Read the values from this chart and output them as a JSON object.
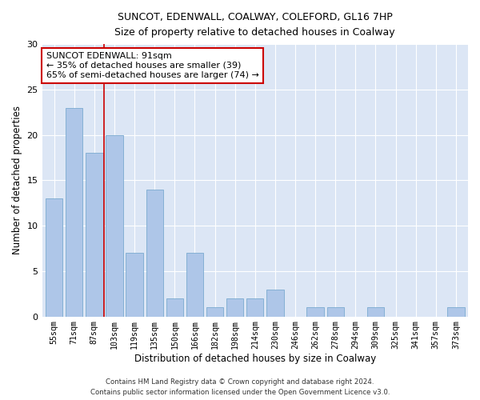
{
  "title1": "SUNCOT, EDENWALL, COALWAY, COLEFORD, GL16 7HP",
  "title2": "Size of property relative to detached houses in Coalway",
  "xlabel": "Distribution of detached houses by size in Coalway",
  "ylabel": "Number of detached properties",
  "categories": [
    "55sqm",
    "71sqm",
    "87sqm",
    "103sqm",
    "119sqm",
    "135sqm",
    "150sqm",
    "166sqm",
    "182sqm",
    "198sqm",
    "214sqm",
    "230sqm",
    "246sqm",
    "262sqm",
    "278sqm",
    "294sqm",
    "309sqm",
    "325sqm",
    "341sqm",
    "357sqm",
    "373sqm"
  ],
  "values": [
    13,
    23,
    18,
    20,
    7,
    14,
    2,
    7,
    1,
    2,
    2,
    3,
    0,
    1,
    1,
    0,
    1,
    0,
    0,
    0,
    1
  ],
  "bar_color": "#aec6e8",
  "bar_edgecolor": "#7aaad0",
  "background_color": "#ffffff",
  "plot_bg_color": "#dce6f5",
  "grid_color": "#ffffff",
  "vline_x": 2.5,
  "vline_color": "#cc0000",
  "annotation_text": "SUNCOT EDENWALL: 91sqm\n← 35% of detached houses are smaller (39)\n65% of semi-detached houses are larger (74) →",
  "annotation_box_edgecolor": "#cc0000",
  "footer1": "Contains HM Land Registry data © Crown copyright and database right 2024.",
  "footer2": "Contains public sector information licensed under the Open Government Licence v3.0.",
  "ylim": [
    0,
    30
  ],
  "yticks": [
    0,
    5,
    10,
    15,
    20,
    25,
    30
  ]
}
